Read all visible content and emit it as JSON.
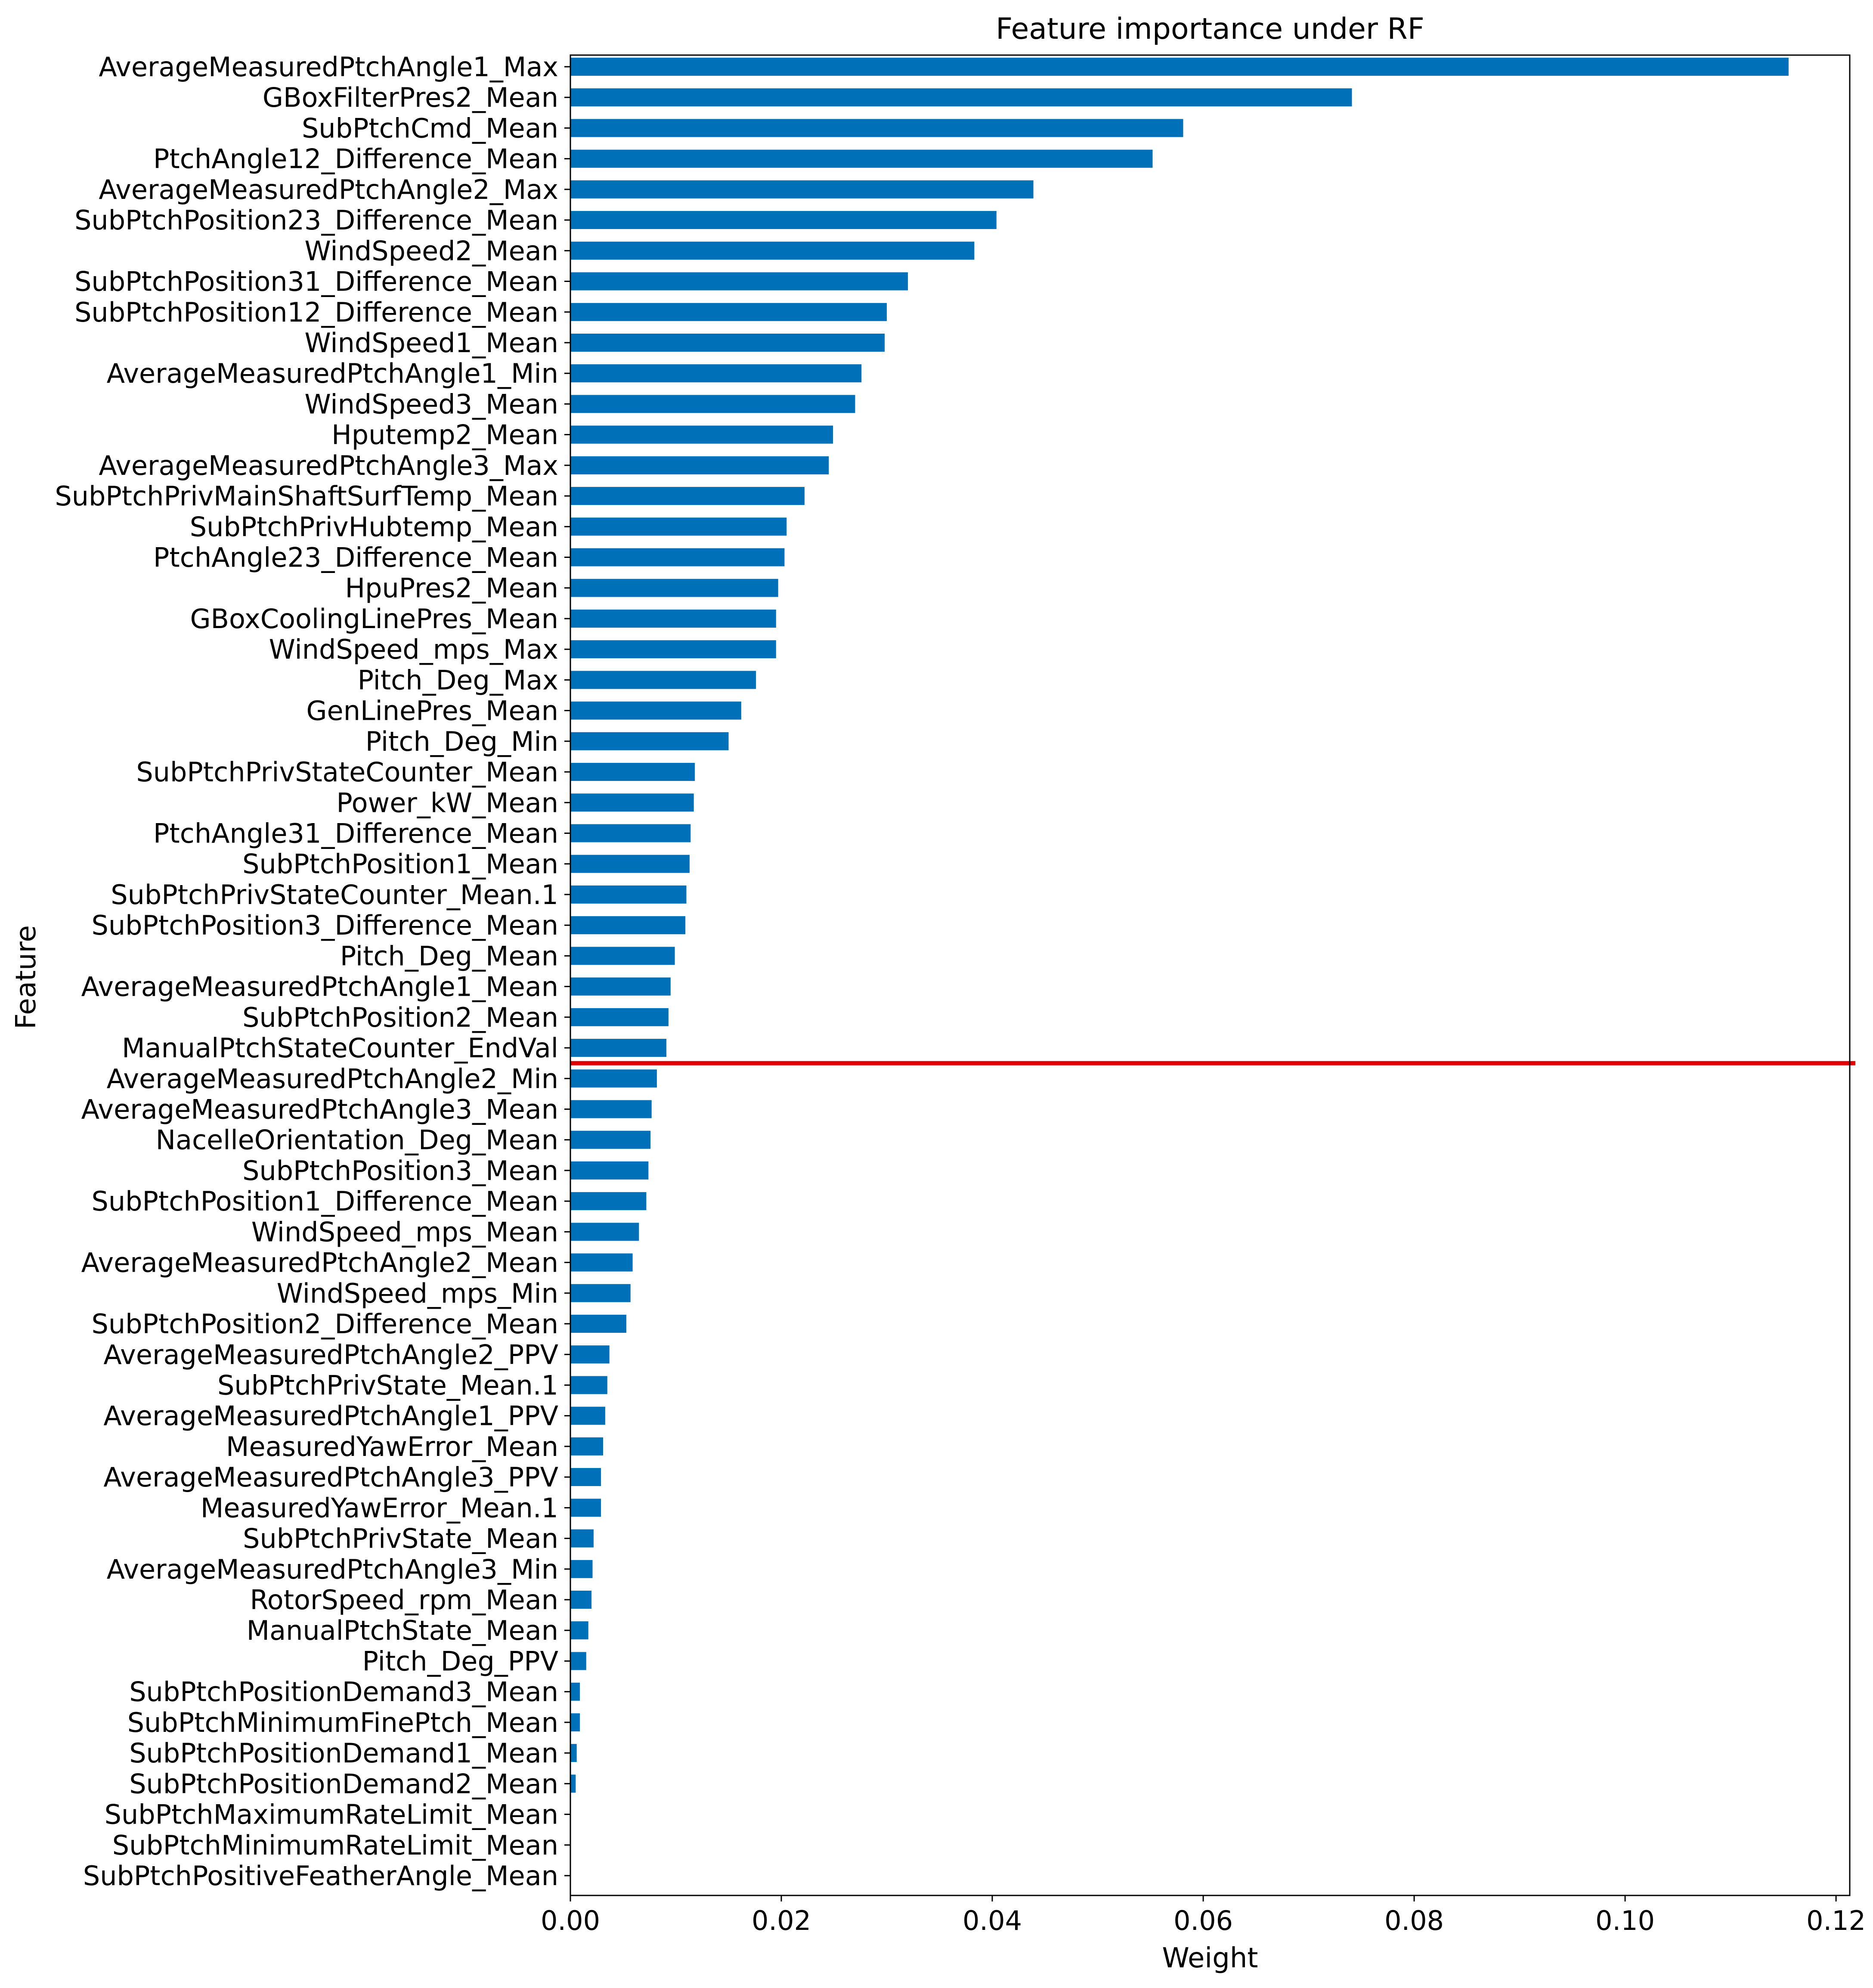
{
  "chart_data": {
    "type": "bar",
    "orientation": "horizontal",
    "title": "Feature importance under RF",
    "xlabel": "Weight",
    "ylabel": "Feature",
    "xlim": [
      0,
      0.1213
    ],
    "xticks": [
      0.0,
      0.02,
      0.04,
      0.06,
      0.08,
      0.1,
      0.12
    ],
    "xtick_labels": [
      "0.00",
      "0.02",
      "0.04",
      "0.06",
      "0.08",
      "0.10",
      "0.12"
    ],
    "grid": false,
    "legend": "none",
    "bar_color": "#0070B8",
    "reference_line": {
      "orientation": "horizontal",
      "color": "#E00000",
      "between_categories": [
        "ManualPtchStateCounter_EndVal",
        "AverageMeasuredPtchAngle2_Min"
      ]
    },
    "categories": [
      "AverageMeasuredPtchAngle1_Max",
      "GBoxFilterPres2_Mean",
      "SubPtchCmd_Mean",
      "PtchAngle12_Difference_Mean",
      "AverageMeasuredPtchAngle2_Max",
      "SubPtchPosition23_Difference_Mean",
      "WindSpeed2_Mean",
      "SubPtchPosition31_Difference_Mean",
      "SubPtchPosition12_Difference_Mean",
      "WindSpeed1_Mean",
      "AverageMeasuredPtchAngle1_Min",
      "WindSpeed3_Mean",
      "Hputemp2_Mean",
      "AverageMeasuredPtchAngle3_Max",
      "SubPtchPrivMainShaftSurfTemp_Mean",
      "SubPtchPrivHubtemp_Mean",
      "PtchAngle23_Difference_Mean",
      "HpuPres2_Mean",
      "GBoxCoolingLinePres_Mean",
      "WindSpeed_mps_Max",
      "Pitch_Deg_Max",
      "GenLinePres_Mean",
      "Pitch_Deg_Min",
      "SubPtchPrivStateCounter_Mean",
      "Power_kW_Mean",
      "PtchAngle31_Difference_Mean",
      "SubPtchPosition1_Mean",
      "SubPtchPrivStateCounter_Mean.1",
      "SubPtchPosition3_Difference_Mean",
      "Pitch_Deg_Mean",
      "AverageMeasuredPtchAngle1_Mean",
      "SubPtchPosition2_Mean",
      "ManualPtchStateCounter_EndVal",
      "AverageMeasuredPtchAngle2_Min",
      "AverageMeasuredPtchAngle3_Mean",
      "NacelleOrientation_Deg_Mean",
      "SubPtchPosition3_Mean",
      "SubPtchPosition1_Difference_Mean",
      "WindSpeed_mps_Mean",
      "AverageMeasuredPtchAngle2_Mean",
      "WindSpeed_mps_Min",
      "SubPtchPosition2_Difference_Mean",
      "AverageMeasuredPtchAngle2_PPV",
      "SubPtchPrivState_Mean.1",
      "AverageMeasuredPtchAngle1_PPV",
      "MeasuredYawError_Mean",
      "AverageMeasuredPtchAngle3_PPV",
      "MeasuredYawError_Mean.1",
      "SubPtchPrivState_Mean",
      "AverageMeasuredPtchAngle3_Min",
      "RotorSpeed_rpm_Mean",
      "ManualPtchState_Mean",
      "Pitch_Deg_PPV",
      "SubPtchPositionDemand3_Mean",
      "SubPtchMinimumFinePtch_Mean",
      "SubPtchPositionDemand1_Mean",
      "SubPtchPositionDemand2_Mean",
      "SubPtchMaximumRateLimit_Mean",
      "SubPtchMinimumRateLimit_Mean",
      "SubPtchPositiveFeatherAngle_Mean"
    ],
    "values": [
      0.1155,
      0.0741,
      0.0581,
      0.0552,
      0.0439,
      0.0404,
      0.0383,
      0.032,
      0.03,
      0.0298,
      0.0276,
      0.027,
      0.0249,
      0.0245,
      0.0222,
      0.0205,
      0.0203,
      0.0197,
      0.0195,
      0.0195,
      0.0176,
      0.0162,
      0.015,
      0.0118,
      0.0117,
      0.0114,
      0.0113,
      0.011,
      0.0109,
      0.0099,
      0.0095,
      0.0093,
      0.0091,
      0.0082,
      0.0077,
      0.0076,
      0.0074,
      0.0072,
      0.0065,
      0.0059,
      0.0057,
      0.0053,
      0.0037,
      0.0035,
      0.0033,
      0.0031,
      0.0029,
      0.0029,
      0.0022,
      0.0021,
      0.002,
      0.0017,
      0.0015,
      0.0009,
      0.0009,
      0.0006,
      0.0005,
      0.0,
      0.0,
      0.0
    ]
  }
}
